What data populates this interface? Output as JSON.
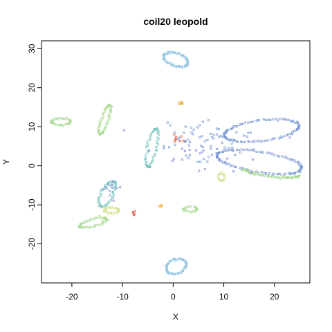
{
  "chart_data": {
    "type": "scatter",
    "title": "coil20 leopold",
    "xlabel": "X",
    "ylabel": "Y",
    "xlim": [
      -26,
      27
    ],
    "ylim": [
      -30,
      32
    ],
    "xticks": [
      -20,
      -10,
      0,
      10,
      20
    ],
    "yticks": [
      -20,
      -10,
      0,
      10,
      20,
      30
    ],
    "grid": false,
    "legend": "none",
    "colors": {
      "blue": "#6f8fcf",
      "light_blue": "#8fc3e0",
      "teal": "#70c0b8",
      "green": "#a8d890",
      "yellow_green": "#cfe28a",
      "orange": "#f0b040",
      "red": "#e04a3a"
    },
    "clusters": [
      {
        "shape": "ring",
        "cx": 0.5,
        "cy": 27.2,
        "rx": 2.6,
        "ry": 1.6,
        "tilt": -30,
        "n": 70,
        "color": "light_blue"
      },
      {
        "shape": "ring",
        "cx": 0.6,
        "cy": -25.8,
        "rx": 2.2,
        "ry": 1.7,
        "tilt": 40,
        "n": 60,
        "color": "light_blue"
      },
      {
        "shape": "ring",
        "cx": -22.2,
        "cy": 11.3,
        "rx": 1.9,
        "ry": 0.8,
        "tilt": 0,
        "n": 40,
        "color": "green"
      },
      {
        "shape": "ring",
        "cx": -13.5,
        "cy": 11.8,
        "rx": 3.8,
        "ry": 0.7,
        "tilt": 75,
        "n": 55,
        "color": "green"
      },
      {
        "shape": "ring",
        "cx": -4.2,
        "cy": 4.5,
        "rx": 5.0,
        "ry": 0.9,
        "tilt": 80,
        "n": 55,
        "color": "teal"
      },
      {
        "shape": "ring",
        "cx": -13.0,
        "cy": -7.2,
        "rx": 3.4,
        "ry": 1.2,
        "tilt": 70,
        "n": 45,
        "color": "teal"
      },
      {
        "shape": "ring",
        "cx": -15.8,
        "cy": -14.6,
        "rx": 2.8,
        "ry": 0.9,
        "tilt": 20,
        "n": 50,
        "color": "green"
      },
      {
        "shape": "ring",
        "cx": -12.2,
        "cy": -11.4,
        "rx": 1.4,
        "ry": 0.8,
        "tilt": 0,
        "n": 30,
        "color": "yellow_green"
      },
      {
        "shape": "ring",
        "cx": 3.3,
        "cy": -11.1,
        "rx": 1.4,
        "ry": 0.6,
        "tilt": 0,
        "n": 24,
        "color": "green"
      },
      {
        "shape": "ring",
        "cx": 9.5,
        "cy": -2.9,
        "rx": 0.6,
        "ry": 1.1,
        "tilt": 0,
        "n": 18,
        "color": "yellow_green"
      },
      {
        "shape": "ring",
        "cx": 1.6,
        "cy": 16.0,
        "rx": 0.4,
        "ry": 0.3,
        "tilt": 0,
        "n": 8,
        "color": "orange"
      },
      {
        "shape": "ring",
        "cx": 17.5,
        "cy": 9.0,
        "rx": 7.5,
        "ry": 2.6,
        "tilt": 10,
        "n": 90,
        "color": "blue"
      },
      {
        "shape": "ring",
        "cx": 17.0,
        "cy": 1.0,
        "rx": 8.5,
        "ry": 2.6,
        "tilt": -12,
        "n": 100,
        "color": "blue"
      },
      {
        "shape": "arc",
        "cx": 19.5,
        "cy": -1.2,
        "rx": 6.0,
        "ry": 1.6,
        "tilt": -8,
        "from": 200,
        "to": 340,
        "n": 60,
        "color": "green"
      },
      {
        "shape": "cloud",
        "cx": 6.0,
        "cy": 5.5,
        "sx": 5.0,
        "sy": 3.0,
        "n": 90,
        "color": "blue"
      },
      {
        "shape": "cloud",
        "cx": 1.0,
        "cy": 6.8,
        "sx": 0.6,
        "sy": 0.6,
        "n": 8,
        "color": "red"
      },
      {
        "shape": "cloud",
        "cx": -7.7,
        "cy": -12.1,
        "sx": 0.3,
        "sy": 0.3,
        "n": 5,
        "color": "red"
      },
      {
        "shape": "cloud",
        "cx": -2.3,
        "cy": -10.7,
        "sx": 0.25,
        "sy": 0.35,
        "n": 5,
        "color": "orange"
      },
      {
        "shape": "cloud",
        "cx": -12.0,
        "cy": -6.0,
        "sx": 1.2,
        "sy": 1.6,
        "n": 14,
        "color": "blue"
      }
    ]
  }
}
